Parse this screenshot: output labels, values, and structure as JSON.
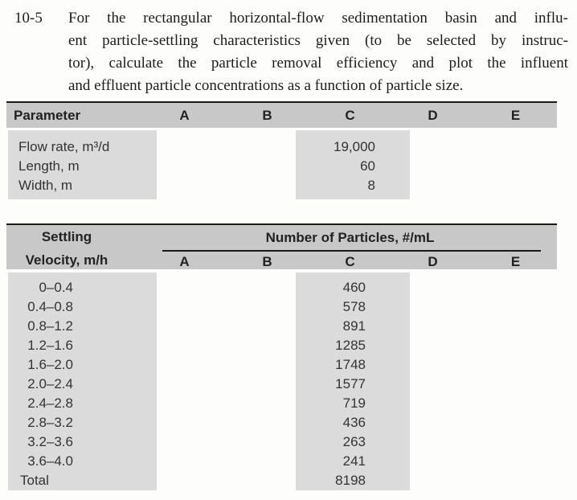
{
  "problem": {
    "number": "10-5",
    "lines": [
      "For the rectangular horizontal-flow sedimentation basin and influ-",
      "ent particle-settling characteristics given (to be selected by instruc-",
      "tor), calculate the particle removal efficiency and plot the influent",
      "and effluent particle concentrations as a function of particle size."
    ]
  },
  "parameters_table": {
    "header_label": "Parameter",
    "columns": [
      "A",
      "B",
      "C",
      "D",
      "E"
    ],
    "data_column": "C",
    "rows": [
      {
        "label": "Flow rate, m³/d",
        "value": "19,000"
      },
      {
        "label": "Length, m",
        "value": "60"
      },
      {
        "label": "Width, m",
        "value": "8"
      }
    ]
  },
  "particles_table": {
    "row_header_line1": "Settling",
    "row_header_line2": "Velocity, m/h",
    "group_header": "Number of Particles, #/mL",
    "columns": [
      "A",
      "B",
      "C",
      "D",
      "E"
    ],
    "data_column": "C",
    "rows": [
      {
        "label": "0–0.4",
        "value": "460"
      },
      {
        "label": "0.4–0.8",
        "value": "578"
      },
      {
        "label": "0.8–1.2",
        "value": "891"
      },
      {
        "label": "1.2–1.6",
        "value": "1285"
      },
      {
        "label": "1.6–2.0",
        "value": "1748"
      },
      {
        "label": "2.0–2.4",
        "value": "1577"
      },
      {
        "label": "2.4–2.8",
        "value": "719"
      },
      {
        "label": "2.8–3.2",
        "value": "436"
      },
      {
        "label": "3.2–3.6",
        "value": "263"
      },
      {
        "label": "3.6–4.0",
        "value": "241"
      },
      {
        "label": "Total",
        "value": "8198"
      }
    ]
  },
  "colors": {
    "table_header_bg": "#c8c8c8",
    "table_cell_bg": "#dbdbdb",
    "rule": "#191919",
    "text": "#333333"
  }
}
